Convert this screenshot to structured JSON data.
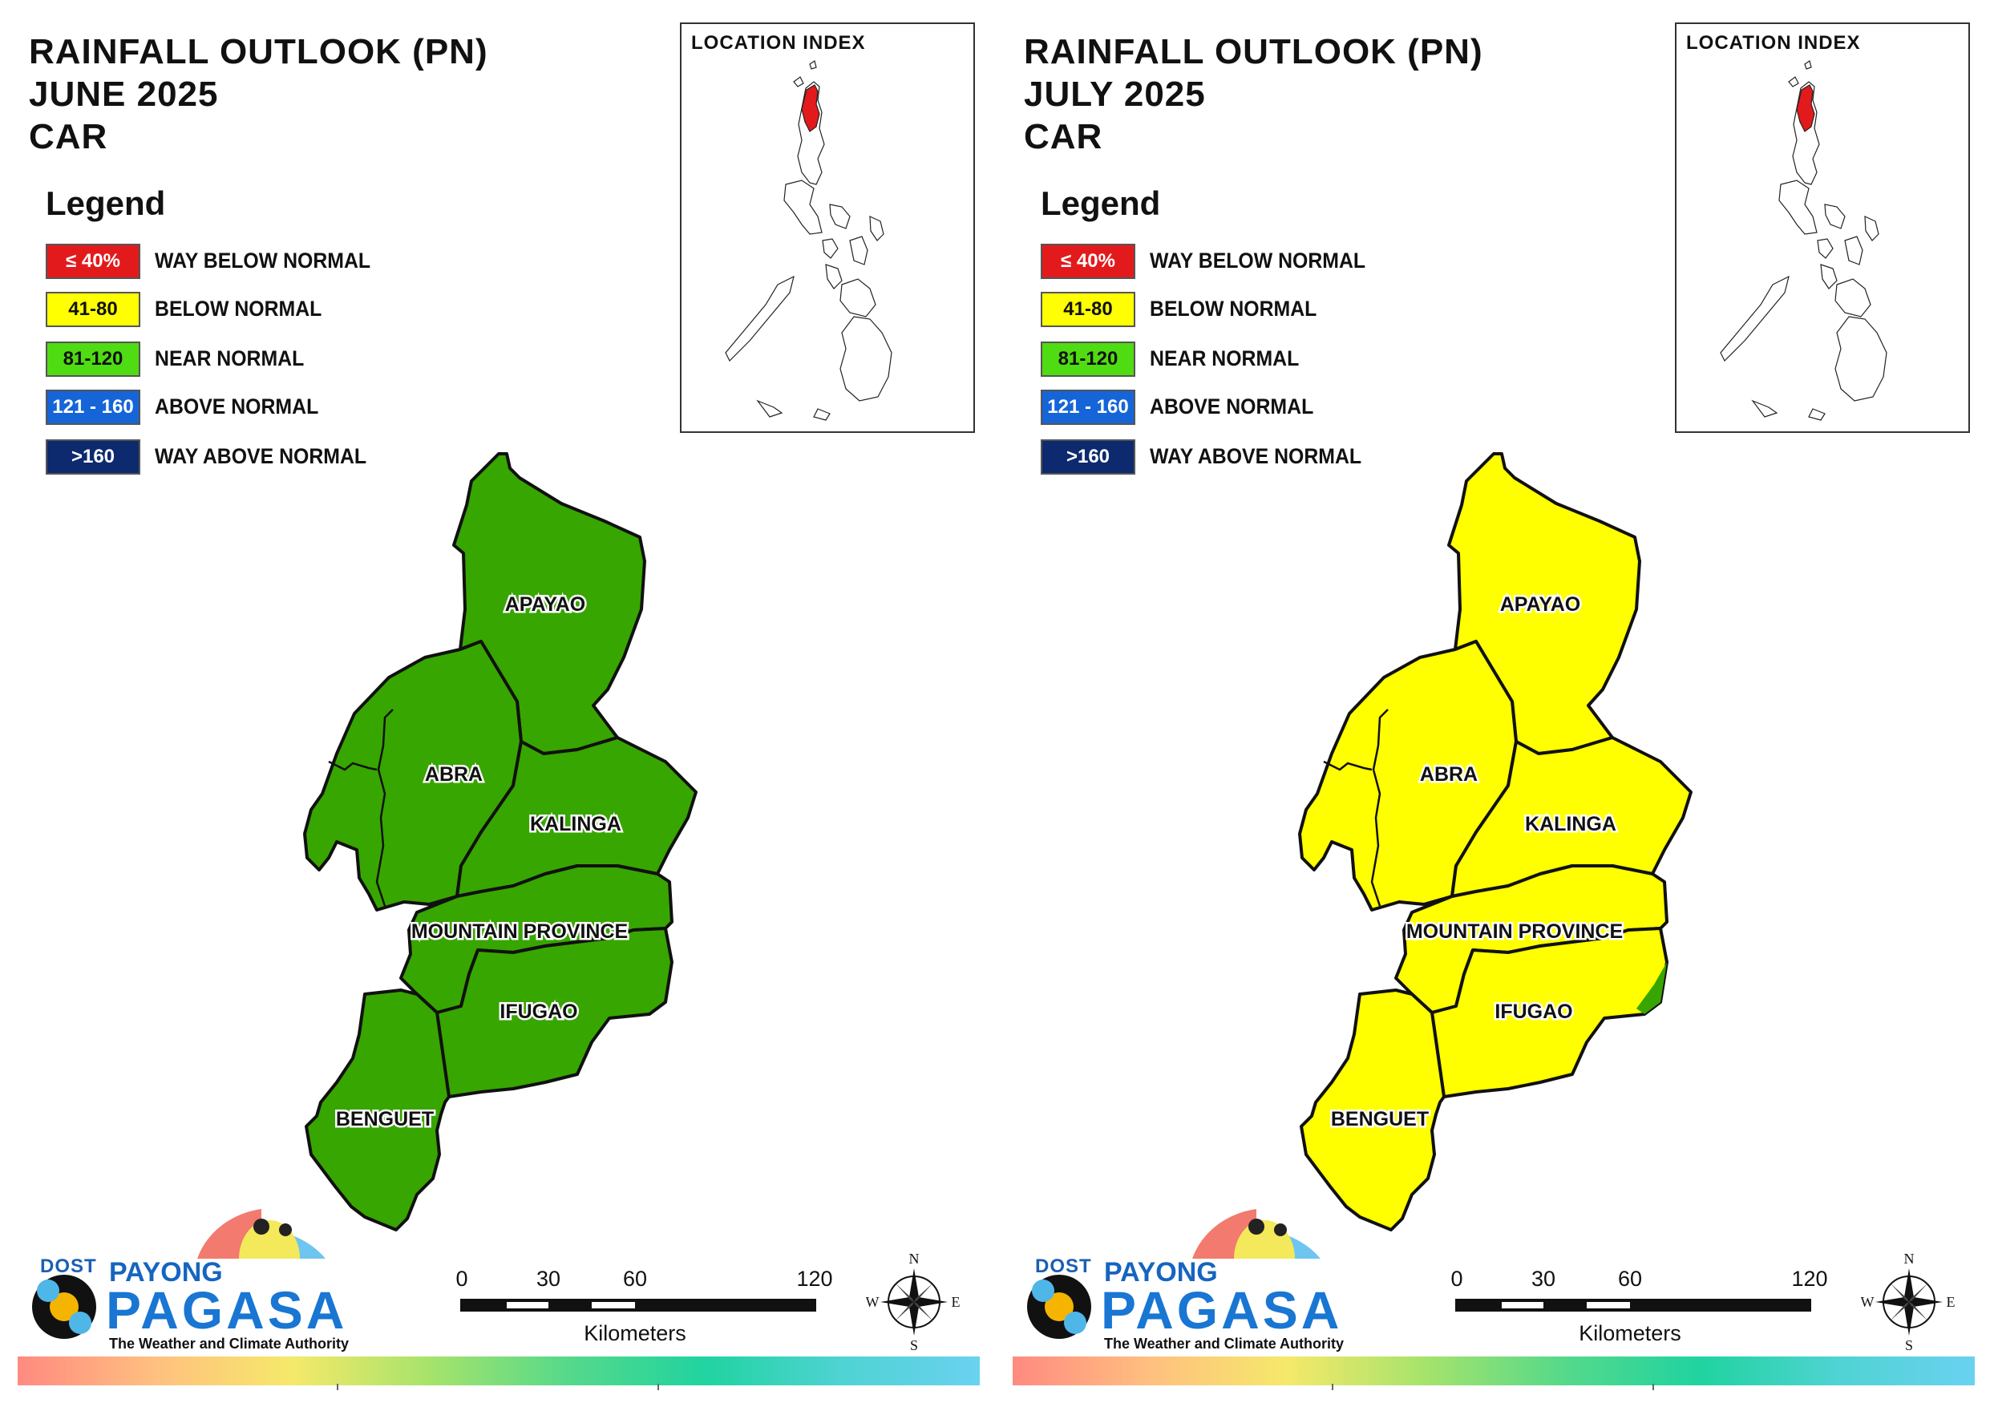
{
  "panels": [
    {
      "title_lines": [
        "RAINFALL OUTLOOK (PN)",
        "JUNE 2025",
        "CAR"
      ],
      "provinces": [
        {
          "name": "APAYAO",
          "category": "near_normal"
        },
        {
          "name": "ABRA",
          "category": "near_normal"
        },
        {
          "name": "KALINGA",
          "category": "near_normal"
        },
        {
          "name": "MOUNTAIN PROVINCE",
          "category": "near_normal"
        },
        {
          "name": "IFUGAO",
          "category": "near_normal"
        },
        {
          "name": "BENGUET",
          "category": "near_normal"
        }
      ]
    },
    {
      "title_lines": [
        "RAINFALL OUTLOOK (PN)",
        "JULY 2025",
        "CAR"
      ],
      "provinces": [
        {
          "name": "APAYAO",
          "category": "below_normal"
        },
        {
          "name": "ABRA",
          "category": "below_normal"
        },
        {
          "name": "KALINGA",
          "category": "below_normal"
        },
        {
          "name": "MOUNTAIN PROVINCE",
          "category": "below_normal"
        },
        {
          "name": "IFUGAO",
          "category": "below_normal"
        },
        {
          "name": "BENGUET",
          "category": "below_normal"
        }
      ]
    }
  ],
  "legend": {
    "heading": "Legend",
    "items": [
      {
        "key": "way_below_normal",
        "range": "≤ 40%",
        "label": "WAY BELOW NORMAL",
        "color": "#e31a1c",
        "text_color": "#ffffff"
      },
      {
        "key": "below_normal",
        "range": "41-80",
        "label": "BELOW NORMAL",
        "color": "#ffff00",
        "text_color": "#111111"
      },
      {
        "key": "near_normal",
        "range": "81-120",
        "label": "NEAR NORMAL",
        "color": "#4fdc12",
        "text_color": "#111111"
      },
      {
        "key": "above_normal",
        "range": "121 - 160",
        "label": "ABOVE NORMAL",
        "color": "#1565d8",
        "text_color": "#ffffff"
      },
      {
        "key": "way_above_normal",
        "range": ">160",
        "label": "WAY ABOVE NORMAL",
        "color": "#0d2a6e",
        "text_color": "#ffffff"
      }
    ]
  },
  "map_fill_colors": {
    "near_normal": "#37a600",
    "below_normal": "#ffff00"
  },
  "location_index": {
    "label": "LOCATION INDEX",
    "highlight_color": "#e31a1c"
  },
  "scale_bar": {
    "ticks": [
      "0",
      "30",
      "60",
      "120"
    ],
    "unit": "Kilometers"
  },
  "compass": {
    "n": "N",
    "e": "E",
    "s": "S",
    "w": "W"
  },
  "logo": {
    "dost": "DOST",
    "payong": "PAYONG",
    "pagasa": "PAGASA",
    "tagline": "The Weather and Climate Authority"
  }
}
